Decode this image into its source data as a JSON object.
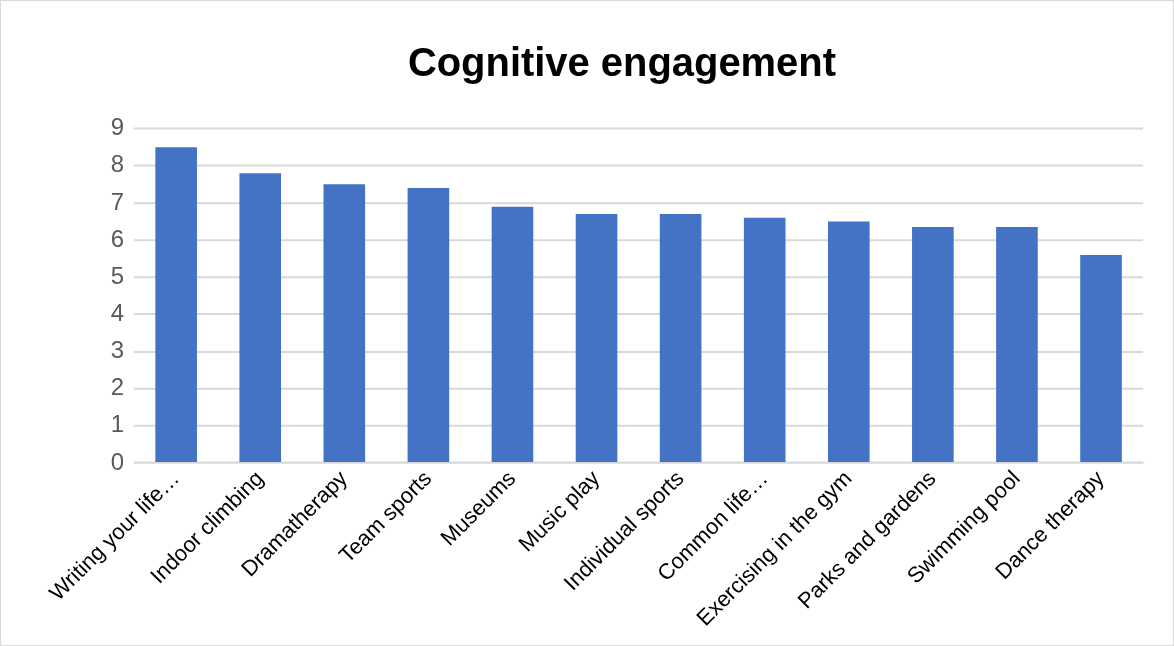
{
  "chart_data": {
    "type": "bar",
    "title": "Cognitive engagement",
    "categories": [
      "Writing your life…",
      "Indoor climbing",
      "Dramatherapy",
      "Team sports",
      "Museums",
      "Music play",
      "Individual sports",
      "Common life…",
      "Exercising in the gym",
      "Parks and gardens",
      "Swimming pool",
      "Dance therapy"
    ],
    "values": [
      8.5,
      7.8,
      7.5,
      7.4,
      6.9,
      6.7,
      6.7,
      6.6,
      6.5,
      6.35,
      6.35,
      5.6
    ],
    "color": "#4472c4",
    "ylim": [
      0,
      9
    ],
    "yticks": [
      0,
      1,
      2,
      3,
      4,
      5,
      6,
      7,
      8,
      9
    ],
    "grid": "y",
    "legend": false
  }
}
